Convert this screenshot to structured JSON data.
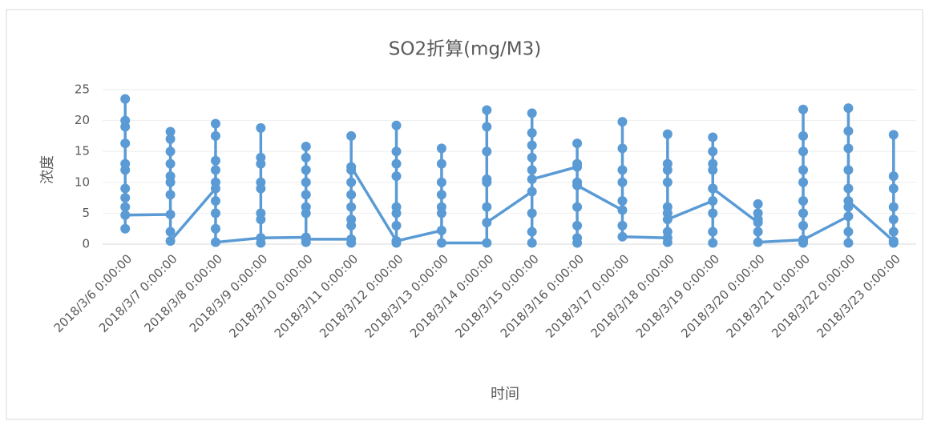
{
  "chart_data": {
    "type": "line",
    "title": "SO2折算(mg/M3)",
    "x_label": "时间",
    "y_label": "浓度",
    "categories": [
      "2018/3/6 0:00:00",
      "2018/3/7 0:00:00",
      "2018/3/8 0:00:00",
      "2018/3/9 0:00:00",
      "2018/3/10 0:00:00",
      "2018/3/11 0:00:00",
      "2018/3/12 0:00:00",
      "2018/3/13 0:00:00",
      "2018/3/14 0:00:00",
      "2018/3/15 0:00:00",
      "2018/3/16 0:00:00",
      "2018/3/17 0:00:00",
      "2018/3/18 0:00:00",
      "2018/3/19 0:00:00",
      "2018/3/20 0:00:00",
      "2018/3/21 0:00:00",
      "2018/3/22 0:00:00",
      "2018/3/23 0:00:00"
    ],
    "series": [
      {
        "name": "SO2折算(mg/M3)",
        "color": "#5b9bd5",
        "values": [
          [
            13,
            20,
            23.5,
            19,
            16.3,
            12,
            9,
            7.5,
            6,
            2.5,
            4.7
          ],
          [
            4.8,
            11,
            15,
            18.2,
            17,
            13,
            10,
            8,
            2,
            0.5
          ],
          [
            9,
            13.5,
            19.5,
            17.5,
            12,
            10,
            7,
            5,
            2.5,
            0.3
          ],
          [
            1,
            5,
            9,
            13,
            18.8,
            14,
            10,
            4,
            0.2,
            1
          ],
          [
            1.1,
            6,
            10,
            15.8,
            14,
            12,
            8,
            5,
            0.3,
            0.8
          ],
          [
            0.8,
            4,
            8,
            12,
            17.5,
            10,
            6,
            3,
            0.2,
            12.5
          ],
          [
            0.5,
            5,
            11,
            15,
            19.2,
            13,
            6,
            3,
            0.2,
            0.5
          ],
          [
            2.2,
            6,
            10,
            15.5,
            13,
            8,
            5,
            0.2
          ],
          [
            0.2,
            6,
            10.5,
            15,
            19,
            21.7,
            10,
            3.5
          ],
          [
            8.5,
            14,
            21.2,
            18,
            16,
            12,
            5,
            2,
            0.2,
            10.5
          ],
          [
            12.5,
            16.3,
            13,
            10,
            6,
            3,
            1,
            0.2,
            9.5
          ],
          [
            5.5,
            10,
            15.5,
            19.8,
            12,
            7,
            3,
            1.2
          ],
          [
            1,
            6,
            10,
            13,
            17.8,
            12,
            5,
            2,
            0.3,
            4
          ],
          [
            7,
            12,
            15,
            17.3,
            13,
            9,
            5,
            2,
            0.2,
            9
          ],
          [
            3.5,
            5,
            6.5,
            4,
            2,
            0.3
          ],
          [
            0.7,
            5,
            10,
            15,
            21.8,
            17.5,
            12,
            7,
            3,
            0.2,
            0.7
          ],
          [
            4.5,
            9,
            15.5,
            18.3,
            22,
            12,
            6,
            2,
            0.2,
            7
          ],
          [
            0.5,
            4,
            9,
            17.7,
            11,
            6,
            2,
            0.2
          ]
        ]
      }
    ],
    "ylim": [
      0,
      25
    ],
    "yticks": [
      0,
      5,
      10,
      15,
      20,
      25
    ],
    "grid": true
  }
}
